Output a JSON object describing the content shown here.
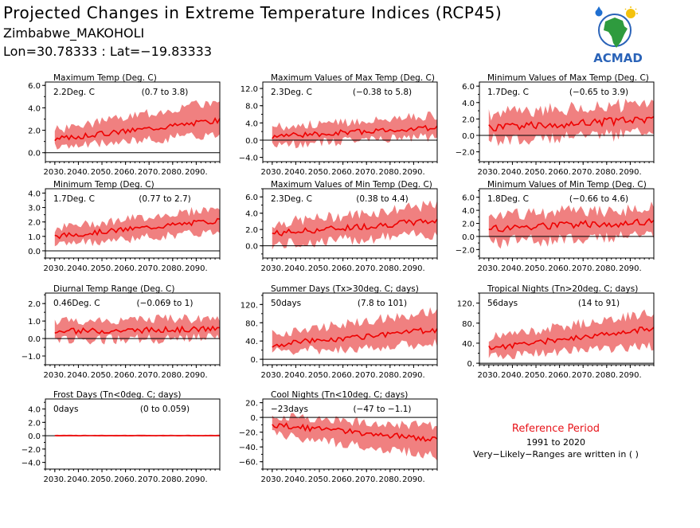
{
  "header": {
    "title": "Projected Changes in Extreme Temperature Indices (RCP45)",
    "station": "Zimbabwe_MAKOHOLI",
    "coords": "Lon=30.78333 : Lat=−19.83333"
  },
  "logo": {
    "text": "ACMAD"
  },
  "reference": {
    "label": "Reference Period",
    "years": "1991 to 2020",
    "note": "Very−Likely−Ranges are written in ( )"
  },
  "colors": {
    "band": "#f08080",
    "line": "#ee0000",
    "zero": "#000000",
    "reference": "#e8141a"
  },
  "chart_data": [
    {
      "type": "area",
      "title": "Maximum Temp (Deg. C)",
      "stat": "2.2Deg. C",
      "range": "(0.7 to 3.8)",
      "ylim": [
        -0.8,
        6.3
      ],
      "yticks": [
        0,
        2,
        4,
        6
      ],
      "yticklabels": [
        "0.0",
        "2.0",
        "4.0",
        "6.0"
      ],
      "xticklabels": [
        "2030.",
        "2040.",
        "2050.",
        "2060.",
        "2070.",
        "2080.",
        "2090."
      ],
      "x_start": 2030,
      "x_end": 2100,
      "median_start": 1.2,
      "median_end": 2.9,
      "lower_start": 0.3,
      "lower_end": 1.5,
      "upper_start": 2.2,
      "upper_end": 4.8
    },
    {
      "type": "area",
      "title": "Maximum Values of Max Temp (Deg. C)",
      "stat": "2.3Deg. C",
      "range": "(−0.38 to 5.8)",
      "ylim": [
        -5.0,
        13.5
      ],
      "yticks": [
        -4,
        0,
        4,
        8,
        12
      ],
      "yticklabels": [
        "−4.0",
        "0.0",
        "4.0",
        "8.0",
        "12.0"
      ],
      "xticklabels": [
        "2030.",
        "2040.",
        "2050.",
        "2060.",
        "2070.",
        "2080.",
        "2090."
      ],
      "x_start": 2030,
      "x_end": 2100,
      "median_start": 0.9,
      "median_end": 2.9,
      "lower_start": -1.5,
      "lower_end": 0.3,
      "upper_start": 3.5,
      "upper_end": 6.2
    },
    {
      "type": "area",
      "title": "Minimum Values of Max Temp (Deg. C)",
      "stat": "1.7Deg. C",
      "range": "(−0.65 to 3.9)",
      "ylim": [
        -3.2,
        6.5
      ],
      "yticks": [
        -2,
        0,
        2,
        4,
        6
      ],
      "yticklabels": [
        "−2.0",
        "0.0",
        "2.0",
        "4.0",
        "6.0"
      ],
      "xticklabels": [
        "2030.",
        "2040.",
        "2050.",
        "2060.",
        "2070.",
        "2080.",
        "2090."
      ],
      "x_start": 2030,
      "x_end": 2100,
      "median_start": 0.9,
      "median_end": 2.0,
      "lower_start": -1.0,
      "lower_end": 0.0,
      "upper_start": 3.0,
      "upper_end": 4.2
    },
    {
      "type": "area",
      "title": "Minimum Temp (Deg. C)",
      "stat": "1.7Deg. C",
      "range": "(0.77 to 2.7)",
      "ylim": [
        -0.5,
        4.3
      ],
      "yticks": [
        0,
        1,
        2,
        3,
        4
      ],
      "yticklabels": [
        "0.0",
        "1.0",
        "2.0",
        "3.0",
        "4.0"
      ],
      "xticklabels": [
        "2030.",
        "2040.",
        "2050.",
        "2060.",
        "2070.",
        "2080.",
        "2090."
      ],
      "x_start": 2030,
      "x_end": 2100,
      "median_start": 1.0,
      "median_end": 2.1,
      "lower_start": 0.3,
      "lower_end": 1.2,
      "upper_start": 1.7,
      "upper_end": 3.1
    },
    {
      "type": "area",
      "title": "Maximum Values of Min Temp (Deg. C)",
      "stat": "2.3Deg. C",
      "range": "(0.38 to 4.4)",
      "ylim": [
        -1.5,
        7.0
      ],
      "yticks": [
        0,
        2,
        4,
        6
      ],
      "yticklabels": [
        "0.0",
        "2.0",
        "4.0",
        "6.0"
      ],
      "xticklabels": [
        "2030.",
        "2040.",
        "2050.",
        "2060.",
        "2070.",
        "2080.",
        "2090."
      ],
      "x_start": 2030,
      "x_end": 2100,
      "median_start": 1.5,
      "median_end": 3.1,
      "lower_start": -0.2,
      "lower_end": 1.2,
      "upper_start": 3.0,
      "upper_end": 5.3
    },
    {
      "type": "area",
      "title": "Minimum Values of Min Temp (Deg. C)",
      "stat": "1.8Deg. C",
      "range": "(−0.66 to 4.6)",
      "ylim": [
        -3.3,
        7.3
      ],
      "yticks": [
        -2,
        0,
        2,
        4,
        6
      ],
      "yticklabels": [
        "−2.0",
        "0.0",
        "2.0",
        "4.0",
        "6.0"
      ],
      "xticklabels": [
        "2030.",
        "2040.",
        "2050.",
        "2060.",
        "2070.",
        "2080.",
        "2090."
      ],
      "x_start": 2030,
      "x_end": 2100,
      "median_start": 1.2,
      "median_end": 2.2,
      "lower_start": -1.3,
      "lower_end": -0.3,
      "upper_start": 3.6,
      "upper_end": 4.8
    },
    {
      "type": "area",
      "title": "Diurnal Temp Range (Deg. C)",
      "stat": "0.46Deg. C",
      "range": "(−0.069 to 1)",
      "ylim": [
        -1.5,
        2.6
      ],
      "yticks": [
        -1,
        0,
        1,
        2
      ],
      "yticklabels": [
        "−1.0",
        "0.0",
        "1.0",
        "2.0"
      ],
      "xticklabels": [
        "2030.",
        "2040.",
        "2050.",
        "2060.",
        "2070.",
        "2080.",
        "2090."
      ],
      "x_start": 2030,
      "x_end": 2100,
      "median_start": 0.4,
      "median_end": 0.55,
      "lower_start": -0.2,
      "lower_end": -0.1,
      "upper_start": 1.1,
      "upper_end": 1.3
    },
    {
      "type": "area",
      "title": "Summer Days (Tx>30deg. C; days)",
      "stat": "50days",
      "range": "(7.8 to 101)",
      "ylim": [
        -12,
        145
      ],
      "yticks": [
        0,
        40,
        80,
        120
      ],
      "yticklabels": [
        "0.",
        "40.",
        "80.",
        "120."
      ],
      "xticklabels": [
        "2030.",
        "2040.",
        "2050.",
        "2060.",
        "2070.",
        "2080.",
        "2090."
      ],
      "x_start": 2030,
      "x_end": 2100,
      "median_start": 32,
      "median_end": 65,
      "lower_start": 10,
      "lower_end": 30,
      "upper_start": 60,
      "upper_end": 110
    },
    {
      "type": "area",
      "title": "Tropical Nights (Tn>20deg. C; days)",
      "stat": "56days",
      "range": "(14 to 91)",
      "ylim": [
        -3,
        140
      ],
      "yticks": [
        0,
        40,
        80,
        120
      ],
      "yticklabels": [
        "0.",
        "40.",
        "80.",
        "120."
      ],
      "xticklabels": [
        "2030.",
        "2040.",
        "2050.",
        "2060.",
        "2070.",
        "2080.",
        "2090."
      ],
      "x_start": 2030,
      "x_end": 2100,
      "median_start": 30,
      "median_end": 70,
      "lower_start": 10,
      "lower_end": 30,
      "upper_start": 55,
      "upper_end": 105
    },
    {
      "type": "area",
      "title": "Frost Days (Tn<0deg. C; days)",
      "stat": "0days",
      "range": "(0 to 0.059)",
      "ylim": [
        -5.0,
        5.5
      ],
      "yticks": [
        -4,
        -2,
        0,
        2,
        4
      ],
      "yticklabels": [
        "−4.0",
        "−2.0",
        "0.0",
        "2.0",
        "4.0"
      ],
      "xticklabels": [
        "2030.",
        "2040.",
        "2050.",
        "2060.",
        "2070.",
        "2080.",
        "2090."
      ],
      "x_start": 2030,
      "x_end": 2100,
      "median_start": 0.0,
      "median_end": 0.0,
      "lower_start": 0.0,
      "lower_end": 0.0,
      "upper_start": 0.15,
      "upper_end": 0.15
    },
    {
      "type": "area",
      "title": "Cool Nights (Tn<10deg. C; days)",
      "stat": "−23days",
      "range": "(−47 to −1.1)",
      "ylim": [
        -70,
        25
      ],
      "yticks": [
        -60,
        -40,
        -20,
        0,
        20
      ],
      "yticklabels": [
        "−60.",
        "−40.",
        "−20.",
        "0.",
        "20."
      ],
      "xticklabels": [
        "2030.",
        "2040.",
        "2050.",
        "2060.",
        "2070.",
        "2080.",
        "2090."
      ],
      "x_start": 2030,
      "x_end": 2100,
      "median_start": -10,
      "median_end": -30,
      "lower_start": -25,
      "lower_end": -55,
      "upper_start": 5,
      "upper_end": -10
    }
  ]
}
